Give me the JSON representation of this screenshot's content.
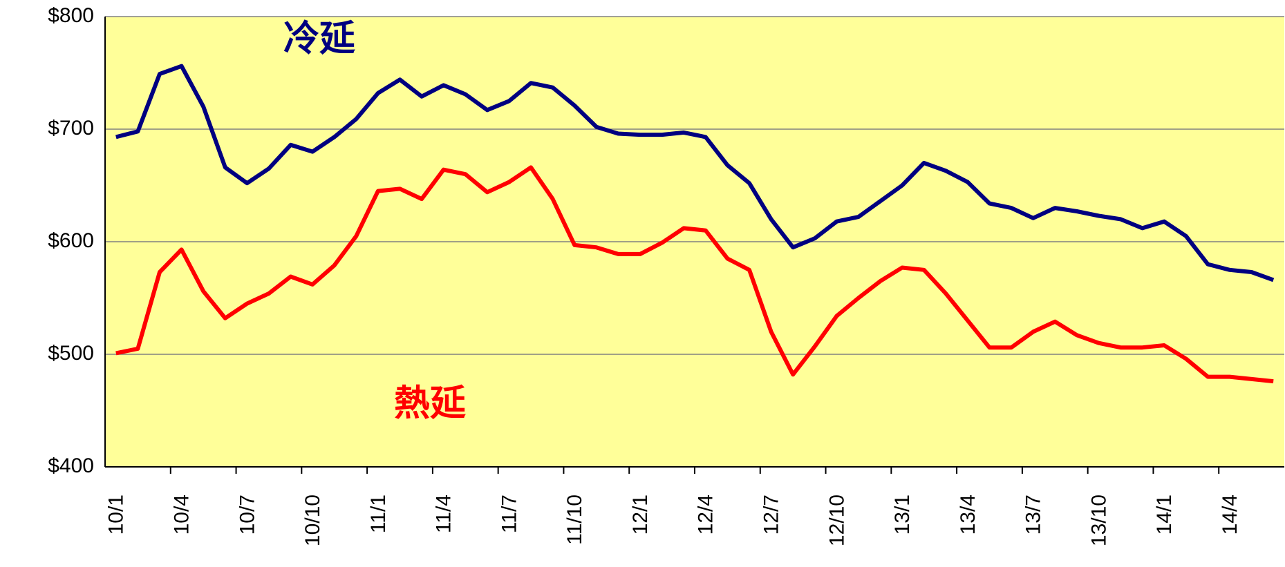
{
  "chart_data": {
    "type": "line",
    "categories": [
      "10/1",
      null,
      null,
      "10/4",
      null,
      null,
      "10/7",
      null,
      null,
      "10/10",
      null,
      null,
      "11/1",
      null,
      null,
      "11/4",
      null,
      null,
      "11/7",
      null,
      null,
      "11/10",
      null,
      null,
      "12/1",
      null,
      null,
      "12/4",
      null,
      null,
      "12/7",
      null,
      null,
      "12/10",
      null,
      null,
      "13/1",
      null,
      null,
      "13/4",
      null,
      null,
      "13/7",
      null,
      null,
      "13/10",
      null,
      null,
      "14/1",
      null,
      null,
      "14/4",
      null,
      null
    ],
    "series": [
      {
        "name": "冷延",
        "color": "#000080",
        "values": [
          693,
          698,
          749,
          756,
          720,
          666,
          652,
          665,
          686,
          680,
          693,
          709,
          732,
          744,
          729,
          739,
          731,
          717,
          725,
          741,
          737,
          721,
          702,
          696,
          695,
          695,
          697,
          693,
          668,
          652,
          620,
          595,
          603,
          618,
          622,
          636,
          650,
          670,
          663,
          653,
          634,
          630,
          621,
          630,
          627,
          623,
          620,
          612,
          618,
          605,
          580,
          575,
          573,
          566
        ]
      },
      {
        "name": "熱延",
        "color": "#ff0000",
        "values": [
          501,
          505,
          573,
          593,
          556,
          532,
          545,
          554,
          569,
          562,
          579,
          605,
          645,
          647,
          638,
          664,
          660,
          644,
          653,
          666,
          638,
          597,
          595,
          589,
          589,
          599,
          612,
          610,
          585,
          575,
          520,
          482,
          507,
          534,
          550,
          565,
          577,
          575,
          554,
          530,
          506,
          506,
          520,
          529,
          517,
          510,
          506,
          506,
          508,
          496,
          480,
          480,
          478,
          476
        ]
      }
    ],
    "ylim": [
      400,
      800
    ],
    "yticks": [
      {
        "value": 400,
        "label": "$400"
      },
      {
        "value": 500,
        "label": "$500"
      },
      {
        "value": 600,
        "label": "$600"
      },
      {
        "value": 700,
        "label": "$700"
      },
      {
        "value": 800,
        "label": "$800"
      }
    ],
    "grid": true,
    "background": "#ffff99"
  }
}
